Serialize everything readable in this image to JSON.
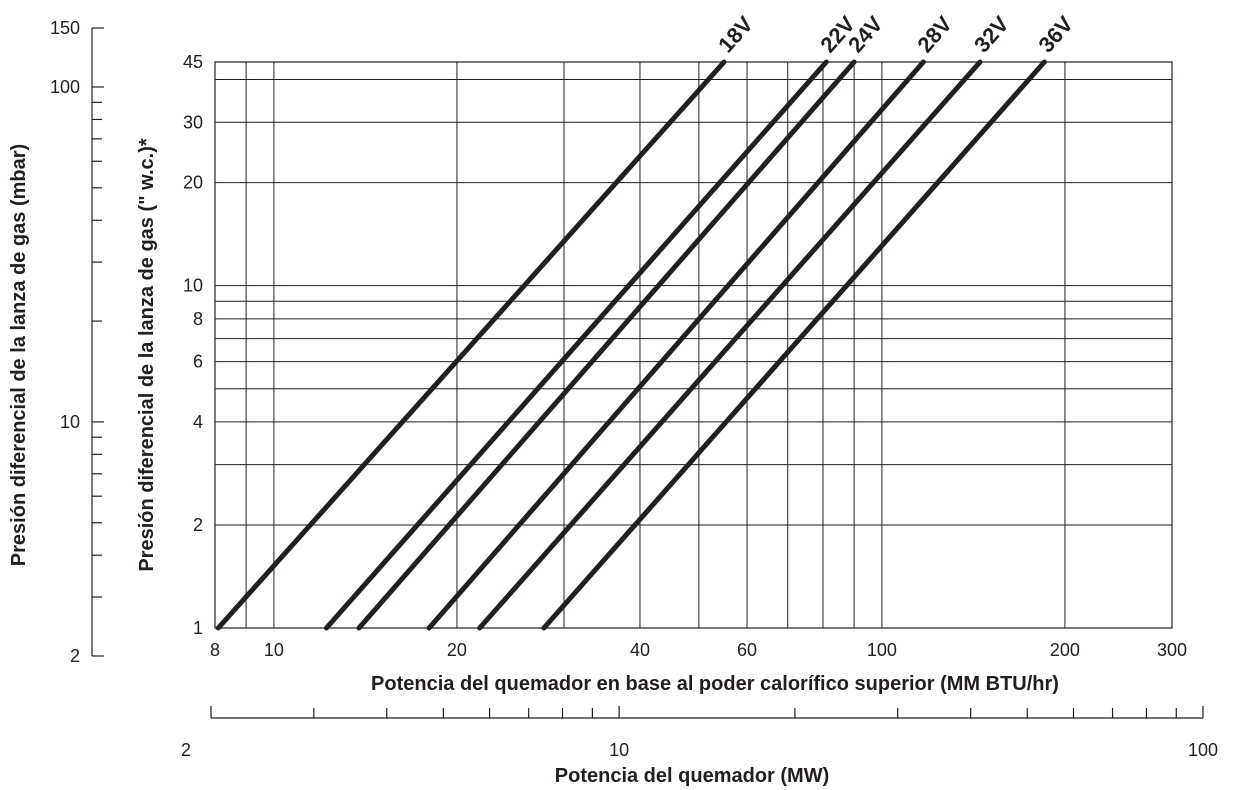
{
  "chart_data": {
    "type": "line",
    "title": "",
    "xlabel": "Potencia del quemador en base al poder calorífico superior (MM BTU/hr)",
    "ylabel": "Presión diferencial de la lanza de gas (\" w.c.)*",
    "x_scale": "log",
    "y_scale": "log",
    "xlim": [
      8,
      300
    ],
    "ylim": [
      1,
      45
    ],
    "grid": true,
    "legend": "none",
    "x_tick_labels": [
      "8",
      "10",
      "20",
      "40",
      "60",
      "100",
      "200",
      "300"
    ],
    "x_ticks": [
      8,
      10,
      20,
      40,
      60,
      100,
      200,
      300
    ],
    "y_tick_labels": [
      "1",
      "2",
      "4",
      "6",
      "8",
      "10",
      "20",
      "30",
      "45"
    ],
    "y_ticks": [
      1,
      2,
      4,
      6,
      8,
      10,
      20,
      30,
      45
    ],
    "x_gridlines": [
      8,
      9,
      10,
      20,
      30,
      40,
      50,
      60,
      70,
      80,
      90,
      100,
      200,
      300
    ],
    "y_gridlines": [
      1,
      2,
      3,
      4,
      5,
      6,
      7,
      8,
      9,
      10,
      20,
      30,
      40,
      45
    ],
    "series": [
      {
        "name": "18V",
        "x": [
          8.1,
          55
        ],
        "y": [
          1,
          45
        ]
      },
      {
        "name": "22V",
        "x": [
          12.2,
          81
        ],
        "y": [
          1,
          45
        ]
      },
      {
        "name": "24V",
        "x": [
          13.8,
          90
        ],
        "y": [
          1,
          45
        ]
      },
      {
        "name": "28V",
        "x": [
          18.0,
          117
        ],
        "y": [
          1,
          45
        ]
      },
      {
        "name": "32V",
        "x": [
          21.8,
          145
        ],
        "y": [
          1,
          45
        ]
      },
      {
        "name": "36V",
        "x": [
          27.8,
          185
        ],
        "y": [
          1,
          45
        ]
      }
    ],
    "secondary_axes": {
      "mbar": {
        "label": "Presión diferencial de la lanza de gas (mbar)",
        "scale": "log",
        "range": [
          2,
          150
        ],
        "tick_labels": [
          "2",
          "10",
          "100",
          "150"
        ],
        "ticks": [
          2,
          10,
          100,
          150
        ],
        "minor_ticks": [
          3,
          4,
          5,
          6,
          7,
          8,
          9,
          20,
          30,
          40,
          50,
          60,
          70,
          80,
          90
        ]
      },
      "mw": {
        "label": "Potencia del quemador (MW)",
        "scale": "log",
        "range": [
          2,
          100
        ],
        "tick_labels": [
          "2",
          "10",
          "100"
        ],
        "ticks": [
          2,
          10,
          100
        ],
        "minor_ticks": [
          3,
          4,
          5,
          6,
          7,
          8,
          9,
          20,
          30,
          40,
          50,
          60,
          70,
          80,
          90
        ]
      }
    }
  }
}
